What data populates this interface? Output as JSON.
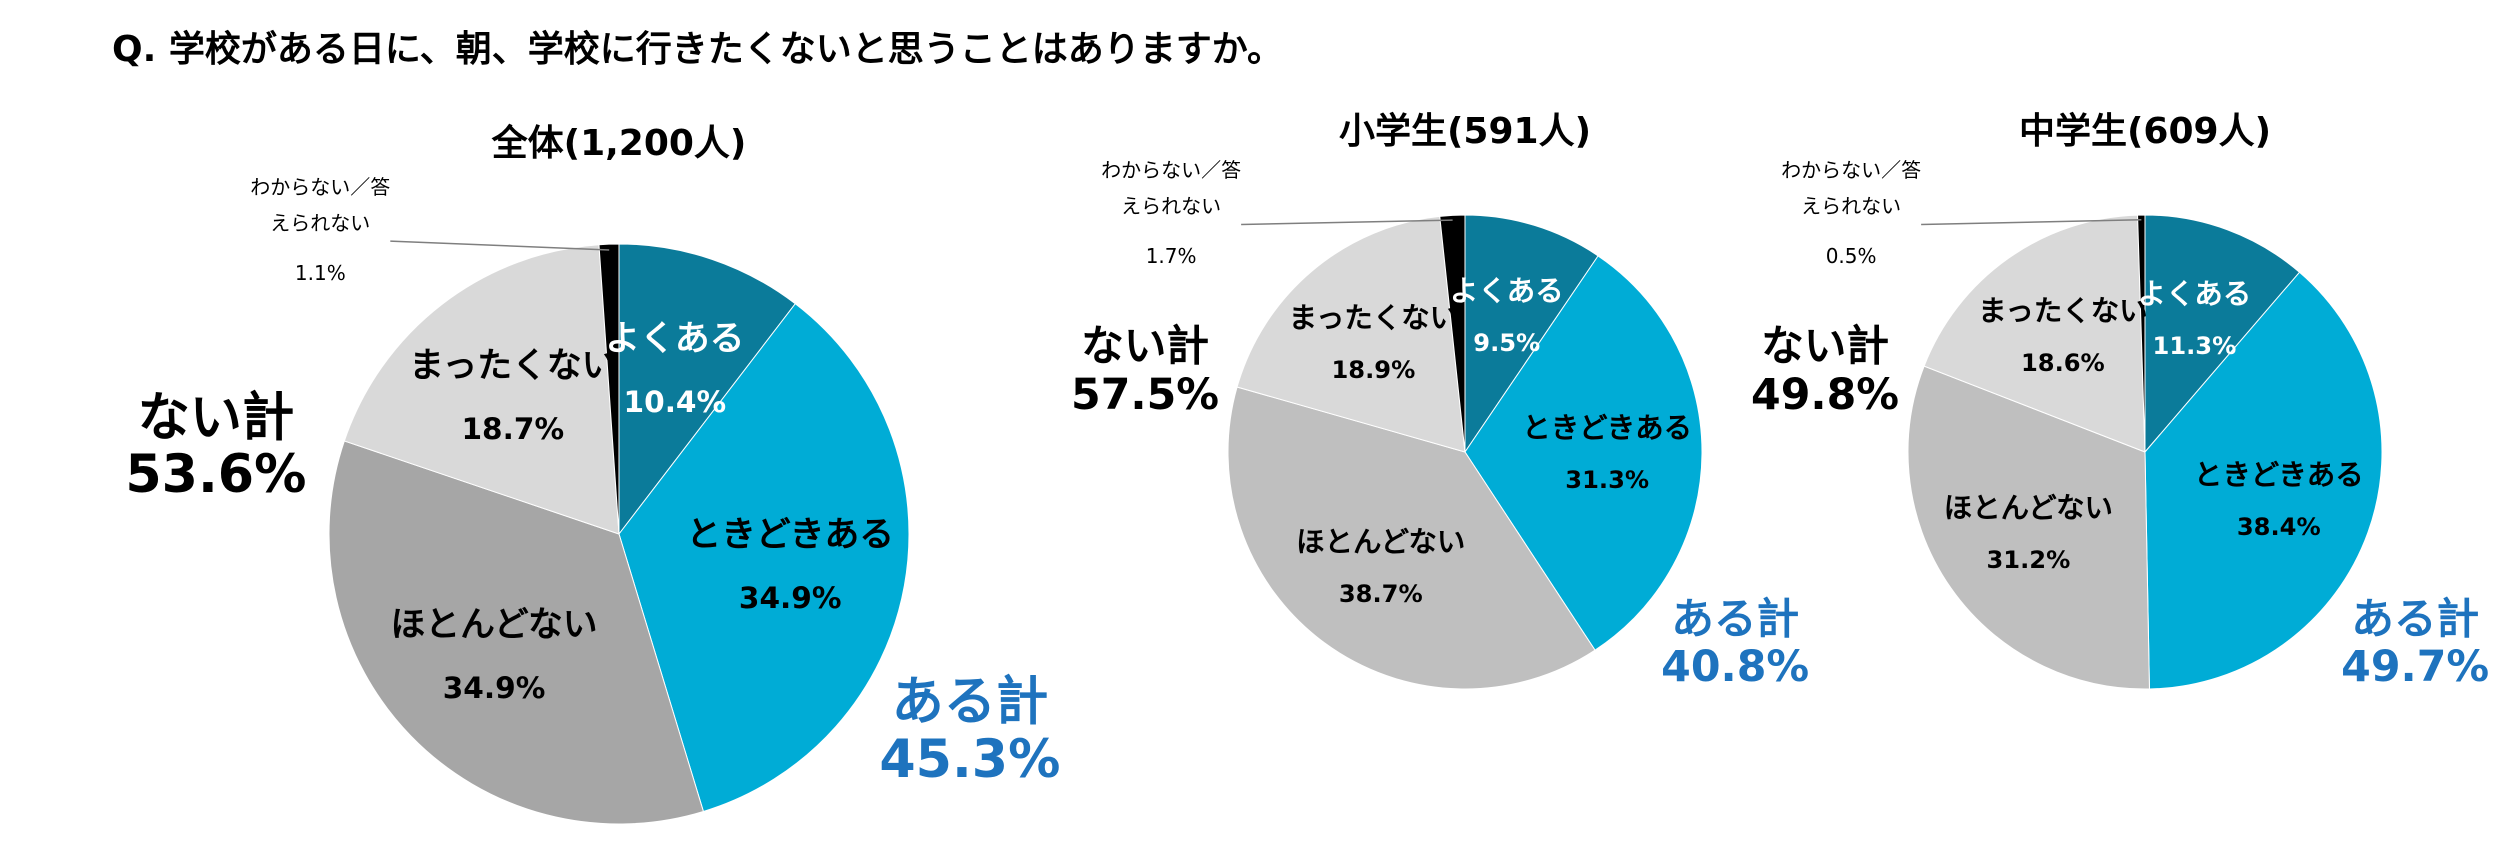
{
  "title": "Q. 学校がある日に、朝、学校に行きたくないと思うことはありますか。",
  "chart_data": [
    {
      "type": "pie",
      "title": "全体(1,200人)",
      "categories": [
        "よくある",
        "ときどきある",
        "ほとんどない",
        "まったくない",
        "わからない／答えられない"
      ],
      "values": [
        10.4,
        34.9,
        34.9,
        18.7,
        1.1
      ],
      "value_labels": [
        "10.4%",
        "34.9%",
        "34.9%",
        "18.7%",
        "1.1%"
      ],
      "colors": [
        "#0b7b9a",
        "#00acd6",
        "#a6a6a6",
        "#d9d9d9",
        "#000000"
      ],
      "totals": [
        {
          "label": "ある計",
          "value": 45.3,
          "value_label": "45.3%",
          "color": "#1e73be"
        },
        {
          "label": "ない計",
          "value": 53.6,
          "value_label": "53.6%",
          "color": "#000000"
        }
      ]
    },
    {
      "type": "pie",
      "title": "小学生(591人)",
      "categories": [
        "よくある",
        "ときどきある",
        "ほとんどない",
        "まったくない",
        "わからない／答えられない"
      ],
      "values": [
        9.5,
        31.3,
        38.7,
        18.9,
        1.7
      ],
      "value_labels": [
        "9.5%",
        "31.3%",
        "38.7%",
        "18.9%",
        "1.7%"
      ],
      "colors": [
        "#0b7b9a",
        "#00acd6",
        "#bfbfbf",
        "#d9d9d9",
        "#000000"
      ],
      "totals": [
        {
          "label": "ある計",
          "value": 40.8,
          "value_label": "40.8%",
          "color": "#1e73be"
        },
        {
          "label": "ない計",
          "value": 57.5,
          "value_label": "57.5%",
          "color": "#000000"
        }
      ]
    },
    {
      "type": "pie",
      "title": "中学生(609人)",
      "categories": [
        "よくある",
        "ときどきある",
        "ほとんどない",
        "まったくない",
        "わからない／答えられない"
      ],
      "values": [
        11.3,
        38.4,
        31.2,
        18.6,
        0.5
      ],
      "value_labels": [
        "11.3%",
        "38.4%",
        "31.2%",
        "18.6%",
        "0.5%"
      ],
      "colors": [
        "#0b7b9a",
        "#00acd6",
        "#bfbfbf",
        "#d9d9d9",
        "#000000"
      ],
      "totals": [
        {
          "label": "ある計",
          "value": 49.7,
          "value_label": "49.7%",
          "color": "#1e73be"
        },
        {
          "label": "ない計",
          "value": 49.8,
          "value_label": "49.8%",
          "color": "#000000"
        }
      ]
    }
  ]
}
